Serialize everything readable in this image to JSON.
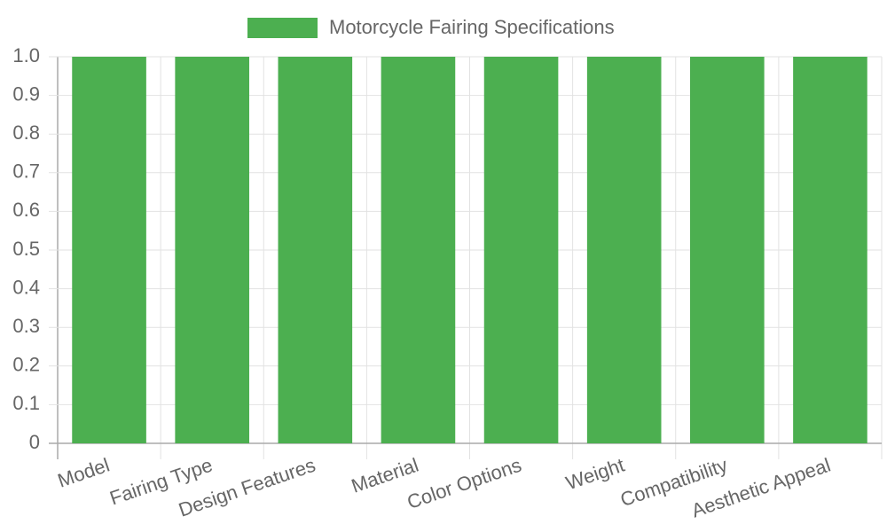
{
  "chart_data": {
    "type": "bar",
    "categories": [
      "Model",
      "Fairing Type",
      "Design Features",
      "Material",
      "Color Options",
      "Weight",
      "Compatibility",
      "Aesthetic Appeal"
    ],
    "series": [
      {
        "name": "Motorcycle Fairing Specifications",
        "color": "#4caf50",
        "values": [
          1,
          1,
          1,
          1,
          1,
          1,
          1,
          1
        ]
      }
    ],
    "ylim": [
      0,
      1
    ],
    "yticks": [
      0,
      0.1,
      0.2,
      0.3,
      0.4,
      0.5,
      0.6,
      0.7,
      0.8,
      0.9,
      {
        "value": 1,
        "label": "1.0"
      }
    ],
    "grid": true,
    "legend": "top"
  }
}
